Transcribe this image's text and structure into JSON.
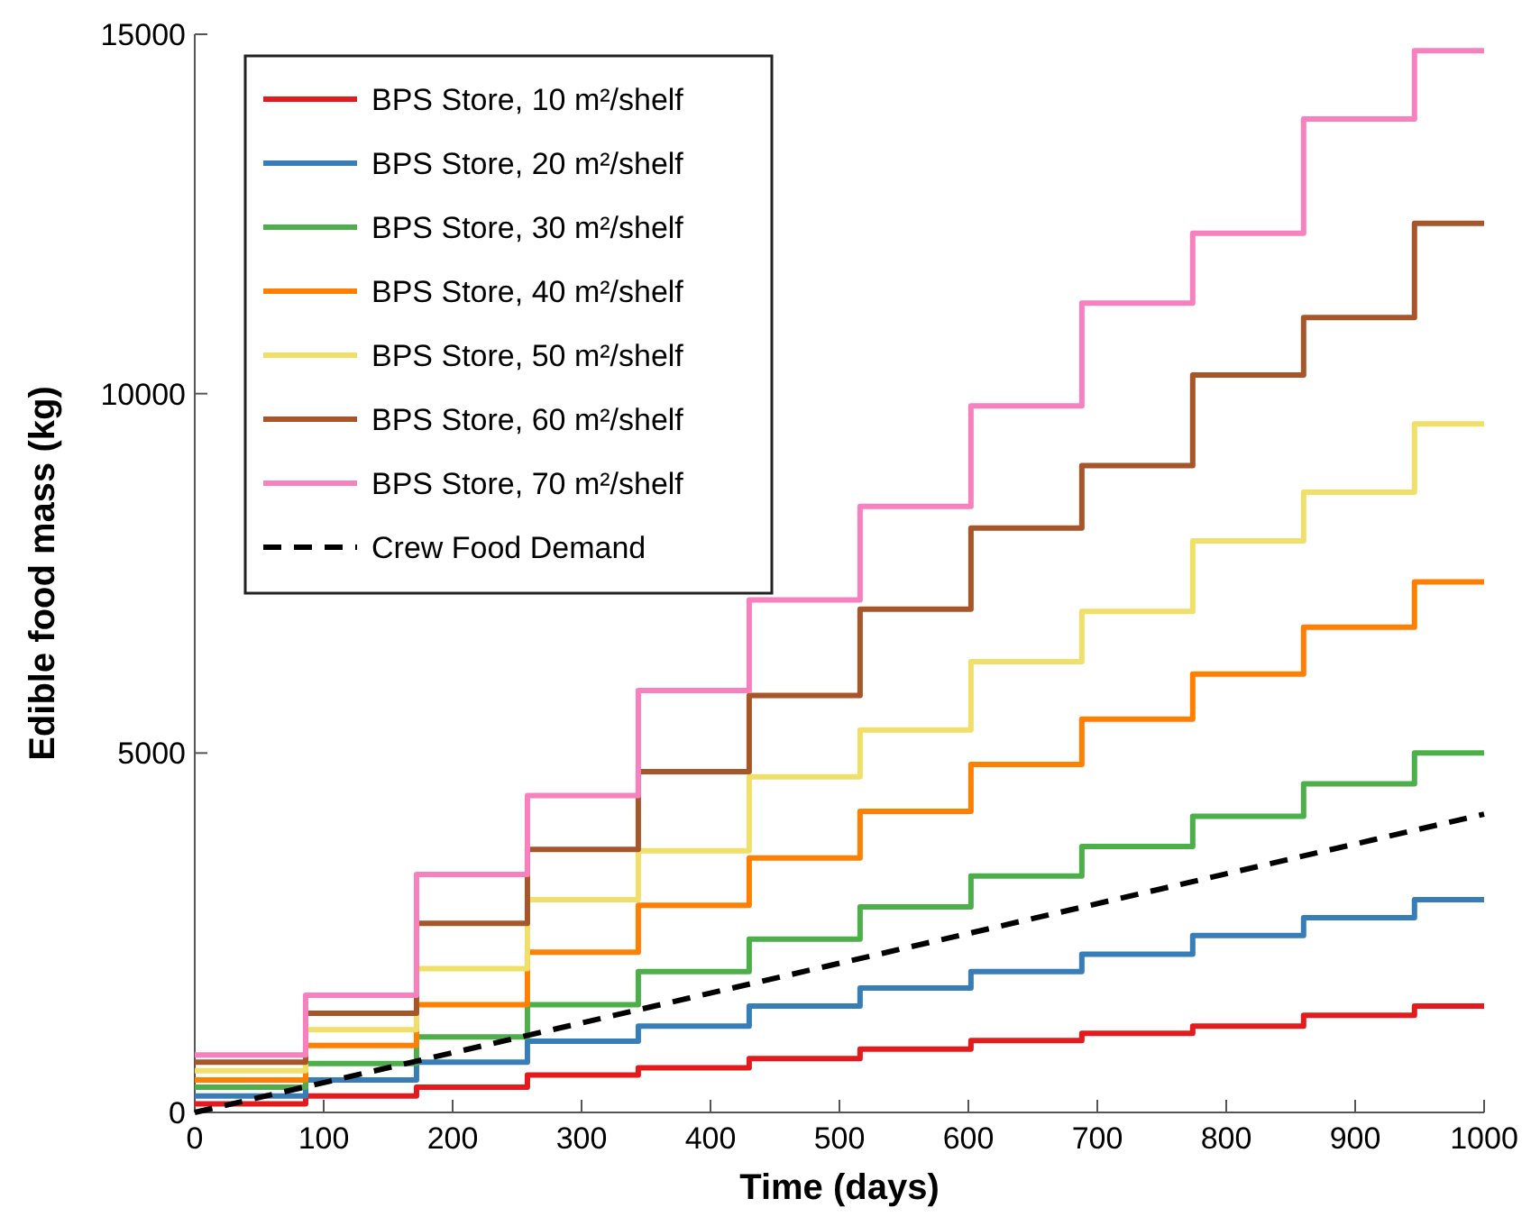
{
  "chart_data": {
    "type": "step",
    "xlabel": "Time (days)",
    "ylabel": "Edible food mass (kg)",
    "x": [
      0,
      86,
      172,
      258,
      344,
      430,
      516,
      602,
      688,
      774,
      860,
      946,
      1000
    ],
    "series": [
      {
        "name": "BPS Store, 10 m²/shelf",
        "color": "#e41a1c",
        "values": [
          120,
          230,
          350,
          520,
          620,
          750,
          880,
          1000,
          1100,
          1200,
          1350,
          1480,
          1480
        ]
      },
      {
        "name": "BPS Store, 20 m²/shelf",
        "color": "#377eb8",
        "values": [
          230,
          450,
          700,
          990,
          1200,
          1480,
          1730,
          1960,
          2200,
          2460,
          2710,
          2960,
          2960
        ]
      },
      {
        "name": "BPS Store, 30 m²/shelf",
        "color": "#4daf4a",
        "values": [
          350,
          680,
          1050,
          1500,
          1960,
          2410,
          2860,
          3290,
          3700,
          4120,
          4570,
          5000,
          5000
        ]
      },
      {
        "name": "BPS Store, 40 m²/shelf",
        "color": "#ff7f00",
        "values": [
          450,
          930,
          1500,
          2230,
          2880,
          3540,
          4190,
          4840,
          5470,
          6100,
          6750,
          7380,
          7380
        ]
      },
      {
        "name": "BPS Store, 50 m²/shelf",
        "color": "#f0e06a",
        "values": [
          580,
          1150,
          2000,
          2960,
          3640,
          4670,
          5320,
          6270,
          6970,
          7950,
          8630,
          9580,
          9580
        ]
      },
      {
        "name": "BPS Store, 60 m²/shelf",
        "color": "#a65628",
        "values": [
          700,
          1380,
          2630,
          3660,
          4740,
          5800,
          7000,
          8130,
          9000,
          10260,
          11060,
          12370,
          12370
        ]
      },
      {
        "name": "BPS Store, 70 m²/shelf",
        "color": "#f781bf",
        "values": [
          800,
          1630,
          3310,
          4410,
          5870,
          7130,
          8430,
          9830,
          11260,
          12230,
          13820,
          14770,
          14770
        ]
      },
      {
        "name": "Crew Food Demand",
        "type": "line",
        "line_style": "dashed",
        "color": "#000000",
        "x": [
          0,
          1000
        ],
        "values": [
          0,
          4150
        ]
      }
    ],
    "xlim": [
      0,
      1000
    ],
    "xticks": [
      0,
      100,
      200,
      300,
      400,
      500,
      600,
      700,
      800,
      900,
      1000
    ],
    "ylim": [
      0,
      15000
    ],
    "yticks": [
      0,
      5000,
      10000,
      15000
    ],
    "grid": false,
    "legend": "top left"
  }
}
